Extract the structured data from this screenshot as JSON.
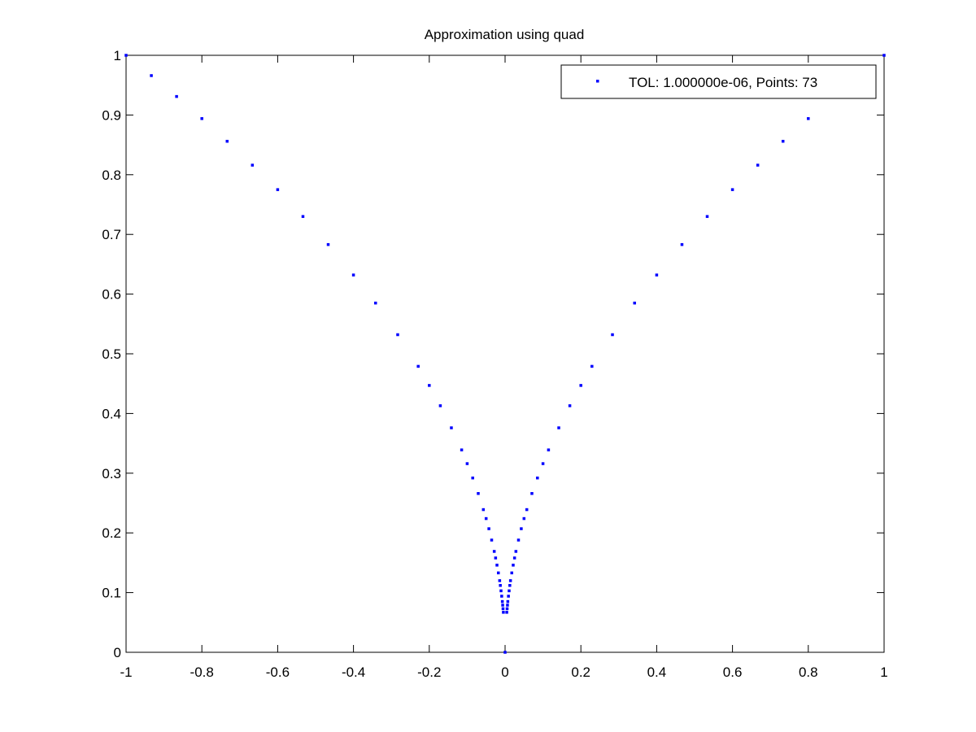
{
  "chart_data": {
    "type": "scatter",
    "title": "Approximation using quad",
    "xlabel": "",
    "ylabel": "",
    "xlim": [
      -1,
      1
    ],
    "ylim": [
      0,
      1
    ],
    "grid": false,
    "legend_position": "top-right",
    "x_ticks": [
      "-1",
      "-0.8",
      "-0.6",
      "-0.4",
      "-0.2",
      "0",
      "0.2",
      "0.4",
      "0.6",
      "0.8",
      "1"
    ],
    "y_ticks": [
      "0",
      "0.1",
      "0.2",
      "0.3",
      "0.4",
      "0.5",
      "0.6",
      "0.7",
      "0.8",
      "0.9",
      "1"
    ],
    "series": [
      {
        "name": "TOL: 1.000000e-06, Points: 73",
        "color": "#0000ff",
        "marker": "point",
        "x": [
          -1.0,
          -0.9333,
          -0.8667,
          -0.8,
          -0.7333,
          -0.6667,
          -0.6,
          -0.5333,
          -0.4667,
          -0.4,
          -0.3417,
          -0.2833,
          -0.2292,
          -0.2,
          -0.1708,
          -0.1417,
          -0.1146,
          -0.1,
          -0.0854,
          -0.0708,
          -0.0573,
          -0.05,
          -0.0427,
          -0.0354,
          -0.0286,
          -0.025,
          -0.0214,
          -0.0177,
          -0.0143,
          -0.0125,
          -0.0107,
          -0.0089,
          -0.0072,
          -0.0063,
          -0.0054,
          -0.0045,
          0.0,
          0.0045,
          0.0054,
          0.0063,
          0.0072,
          0.0089,
          0.0107,
          0.0125,
          0.0143,
          0.0177,
          0.0214,
          0.025,
          0.0286,
          0.0354,
          0.0427,
          0.05,
          0.0573,
          0.0708,
          0.0854,
          0.1,
          0.1146,
          0.1417,
          0.1708,
          0.2,
          0.2292,
          0.2833,
          0.3417,
          0.4,
          0.4667,
          0.5333,
          0.6,
          0.6667,
          0.7333,
          0.8,
          0.8667,
          0.9333,
          1.0
        ],
        "y": [
          1.0,
          0.966,
          0.931,
          0.894,
          0.856,
          0.816,
          0.775,
          0.73,
          0.683,
          0.632,
          0.585,
          0.532,
          0.479,
          0.447,
          0.413,
          0.376,
          0.339,
          0.316,
          0.292,
          0.266,
          0.239,
          0.224,
          0.207,
          0.188,
          0.169,
          0.158,
          0.146,
          0.133,
          0.12,
          0.112,
          0.103,
          0.094,
          0.085,
          0.079,
          0.073,
          0.067,
          0.0,
          0.067,
          0.073,
          0.079,
          0.085,
          0.094,
          0.103,
          0.112,
          0.12,
          0.133,
          0.146,
          0.158,
          0.169,
          0.188,
          0.207,
          0.224,
          0.239,
          0.266,
          0.292,
          0.316,
          0.339,
          0.376,
          0.413,
          0.447,
          0.479,
          0.532,
          0.585,
          0.632,
          0.683,
          0.73,
          0.775,
          0.816,
          0.856,
          0.894,
          0.931,
          0.966,
          1.0
        ]
      }
    ]
  }
}
